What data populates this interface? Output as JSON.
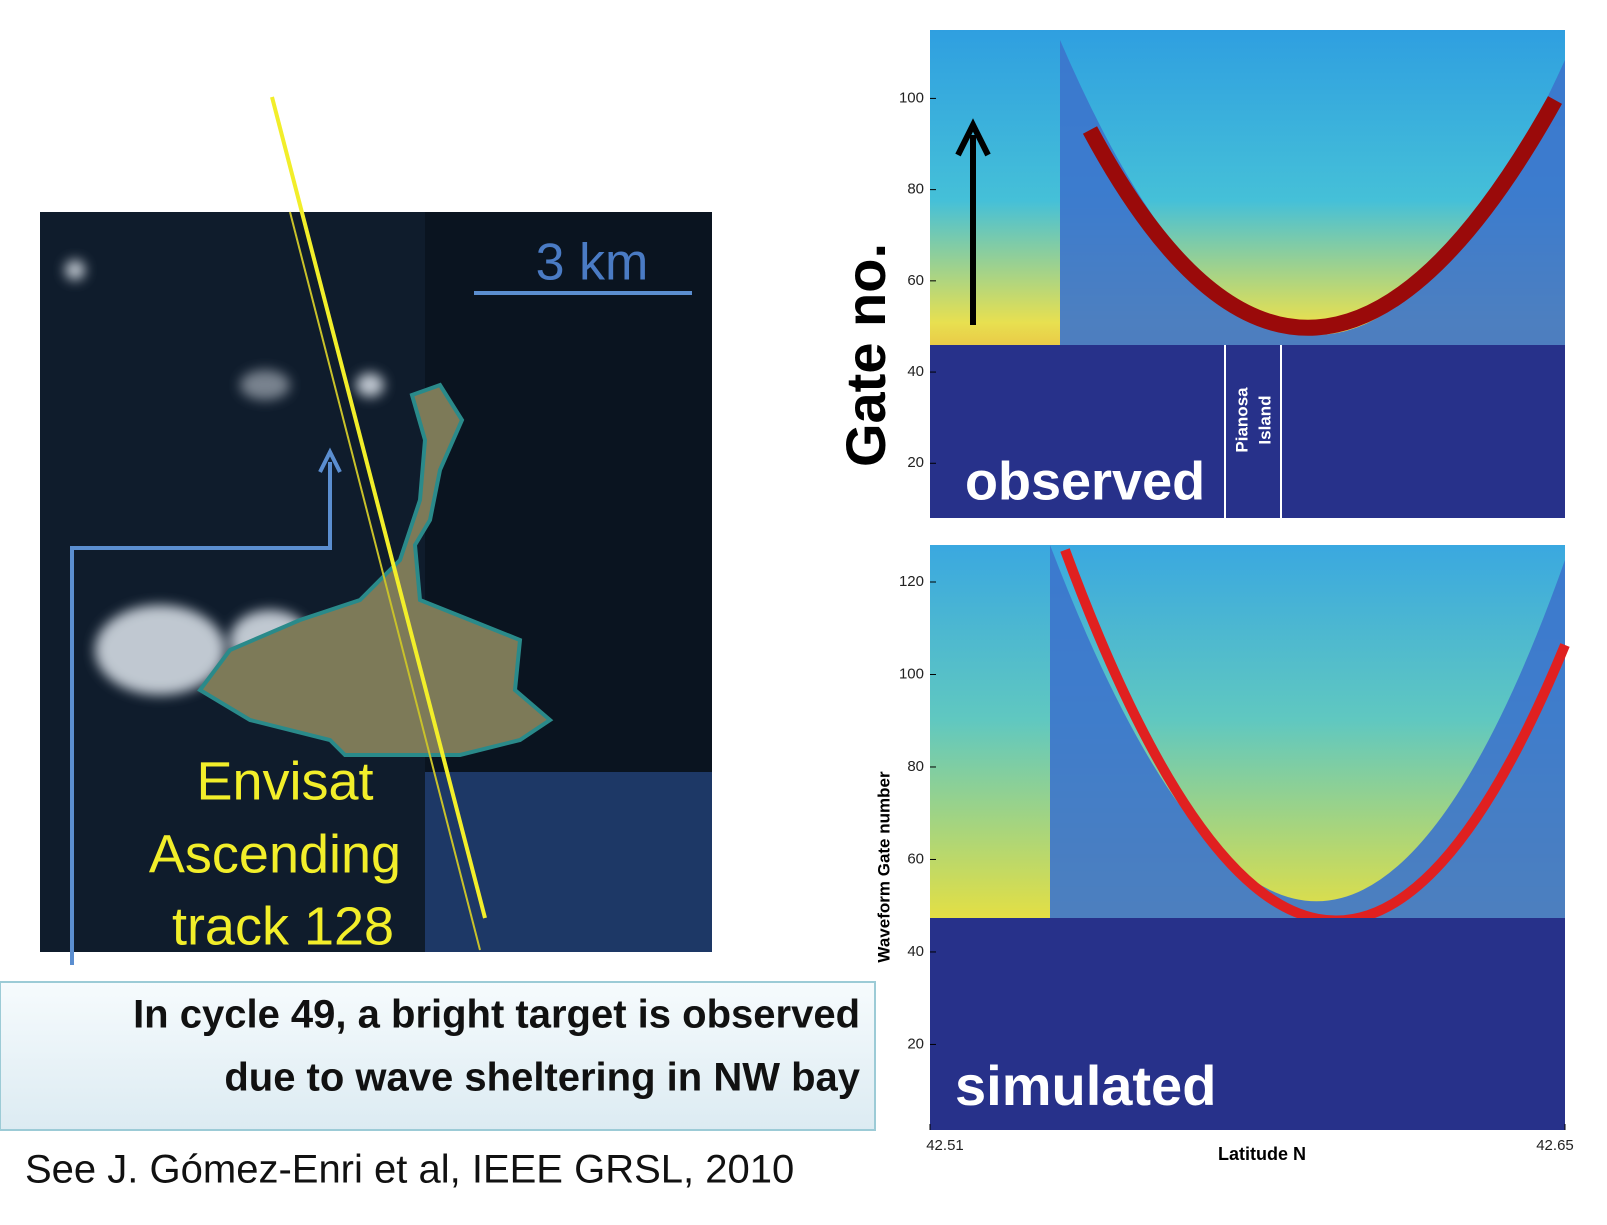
{
  "image": {
    "scale_label": "3 km",
    "track_label": [
      "Envisat",
      "Ascending",
      "track 128"
    ]
  },
  "callout": {
    "lines": [
      "In cycle 49, a bright target is observed",
      "due to wave sheltering in NW bay"
    ]
  },
  "citation": "See J. Gómez-Enri et al, IEEE GRSL, 2010",
  "observed": {
    "label": "observed",
    "ylabel": "Gate no.",
    "ylim": [
      8,
      115
    ],
    "yticks": [
      20,
      40,
      60,
      80,
      100
    ],
    "island_label": [
      "Pianosa",
      "Island"
    ]
  },
  "simulated": {
    "label": "simulated",
    "ylabel": "Waveform Gate number",
    "ylim": [
      1.5,
      128
    ],
    "yticks": [
      20,
      40,
      60,
      80,
      100,
      120
    ],
    "xlabel": "Latitude N",
    "xlim": [
      42.51,
      42.65
    ],
    "xticks": [
      42.51,
      42.65
    ]
  }
}
